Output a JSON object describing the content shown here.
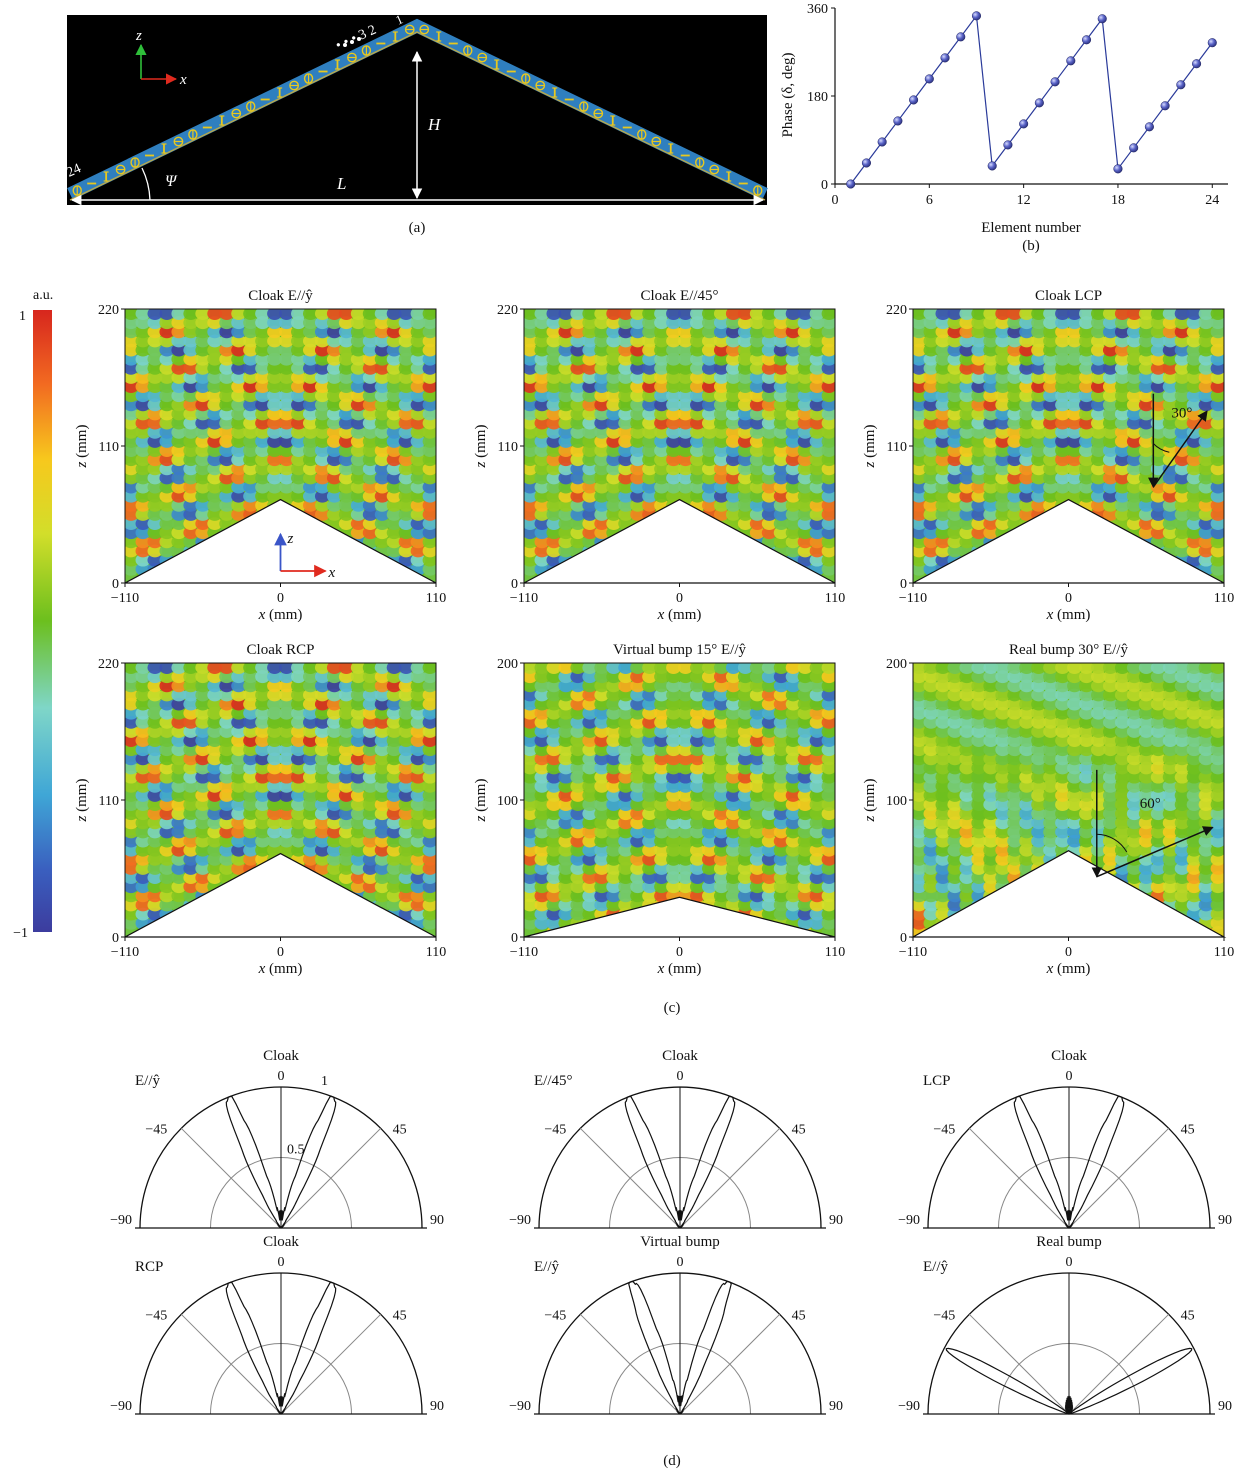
{
  "panel_a": {
    "caption": "(a)",
    "axis_z": "z",
    "axis_x": "x",
    "label_H": "H",
    "label_L": "L",
    "label_psi": "Ψ",
    "element_first": "1",
    "element_indicator": "• • • 3 2",
    "element_last": "24",
    "element_count": 24,
    "colors": {
      "background": "#000000",
      "strip": "#2f7fbf",
      "element": "#e8c81e"
    }
  },
  "panel_c": {
    "caption": "(c)",
    "colorbar": {
      "unit": "a.u.",
      "max_label": "1",
      "min_label": "−1"
    },
    "x_label": "x (mm)",
    "z_label": "z (mm)",
    "x_ticks": [
      "−110",
      "0",
      "110"
    ],
    "maps": [
      {
        "title": "Cloak  E//ŷ",
        "z_ticks": [
          "0",
          "110",
          "220"
        ],
        "zmax": 220,
        "bump_height": 67,
        "pattern": "cloak",
        "axes_inset": true
      },
      {
        "title": "Cloak  E//45°",
        "z_ticks": [
          "0",
          "110",
          "220"
        ],
        "zmax": 220,
        "bump_height": 67,
        "pattern": "cloak"
      },
      {
        "title": "Cloak LCP",
        "z_ticks": [
          "0",
          "110",
          "220"
        ],
        "zmax": 220,
        "bump_height": 67,
        "pattern": "cloak",
        "angle_label": "30°"
      },
      {
        "title": "Cloak RCP",
        "z_ticks": [
          "0",
          "110",
          "220"
        ],
        "zmax": 220,
        "bump_height": 67,
        "pattern": "cloak"
      },
      {
        "title": "Virtual bump 15° E//ŷ",
        "z_ticks": [
          "0",
          "100",
          "200"
        ],
        "zmax": 200,
        "bump_height": 29,
        "pattern": "virtual"
      },
      {
        "title": "Real bump 30° E//ŷ",
        "z_ticks": [
          "0",
          "100",
          "200"
        ],
        "zmax": 200,
        "bump_height": 63,
        "pattern": "real",
        "angle_label": "60°"
      }
    ]
  },
  "panel_d": {
    "caption": "(d)",
    "angle_ticks": [
      "−90",
      "−45",
      "0",
      "45",
      "90"
    ],
    "radius_ticks": [
      "0.5",
      "1"
    ],
    "plots": [
      {
        "title": "Cloak",
        "pol": "E//ŷ",
        "lobe_angle": 22,
        "show_radius": true
      },
      {
        "title": "Cloak",
        "pol": "E//45°",
        "lobe_angle": 22
      },
      {
        "title": "Cloak",
        "pol": "LCP",
        "lobe_angle": 22
      },
      {
        "title": "Cloak",
        "pol": "RCP",
        "lobe_angle": 22
      },
      {
        "title": "Virtual bump",
        "pol": "E//ŷ",
        "lobe_angle": 20
      },
      {
        "title": "Real bump",
        "pol": "E//ŷ",
        "lobe_angle": 62
      }
    ]
  },
  "chart_data": {
    "type": "scatter",
    "caption": "(b)",
    "xlabel": "Element number",
    "ylabel": "Phase (δ, deg)",
    "xlim": [
      0,
      25
    ],
    "ylim": [
      0,
      360
    ],
    "x_ticks": [
      0,
      6,
      12,
      18,
      24
    ],
    "y_ticks": [
      0,
      180,
      360
    ],
    "x": [
      1,
      2,
      3,
      4,
      5,
      6,
      7,
      8,
      9,
      10,
      11,
      12,
      13,
      14,
      15,
      16,
      17,
      18,
      19,
      20,
      21,
      22,
      23,
      24
    ],
    "y": [
      0,
      43,
      86,
      129,
      172,
      215,
      258,
      301,
      344,
      37,
      80,
      123,
      166,
      209,
      252,
      295,
      338,
      31,
      74,
      117,
      160,
      203,
      246,
      289
    ],
    "colors": {
      "line": "#2a3a9a",
      "marker": "#5a64c8"
    }
  }
}
